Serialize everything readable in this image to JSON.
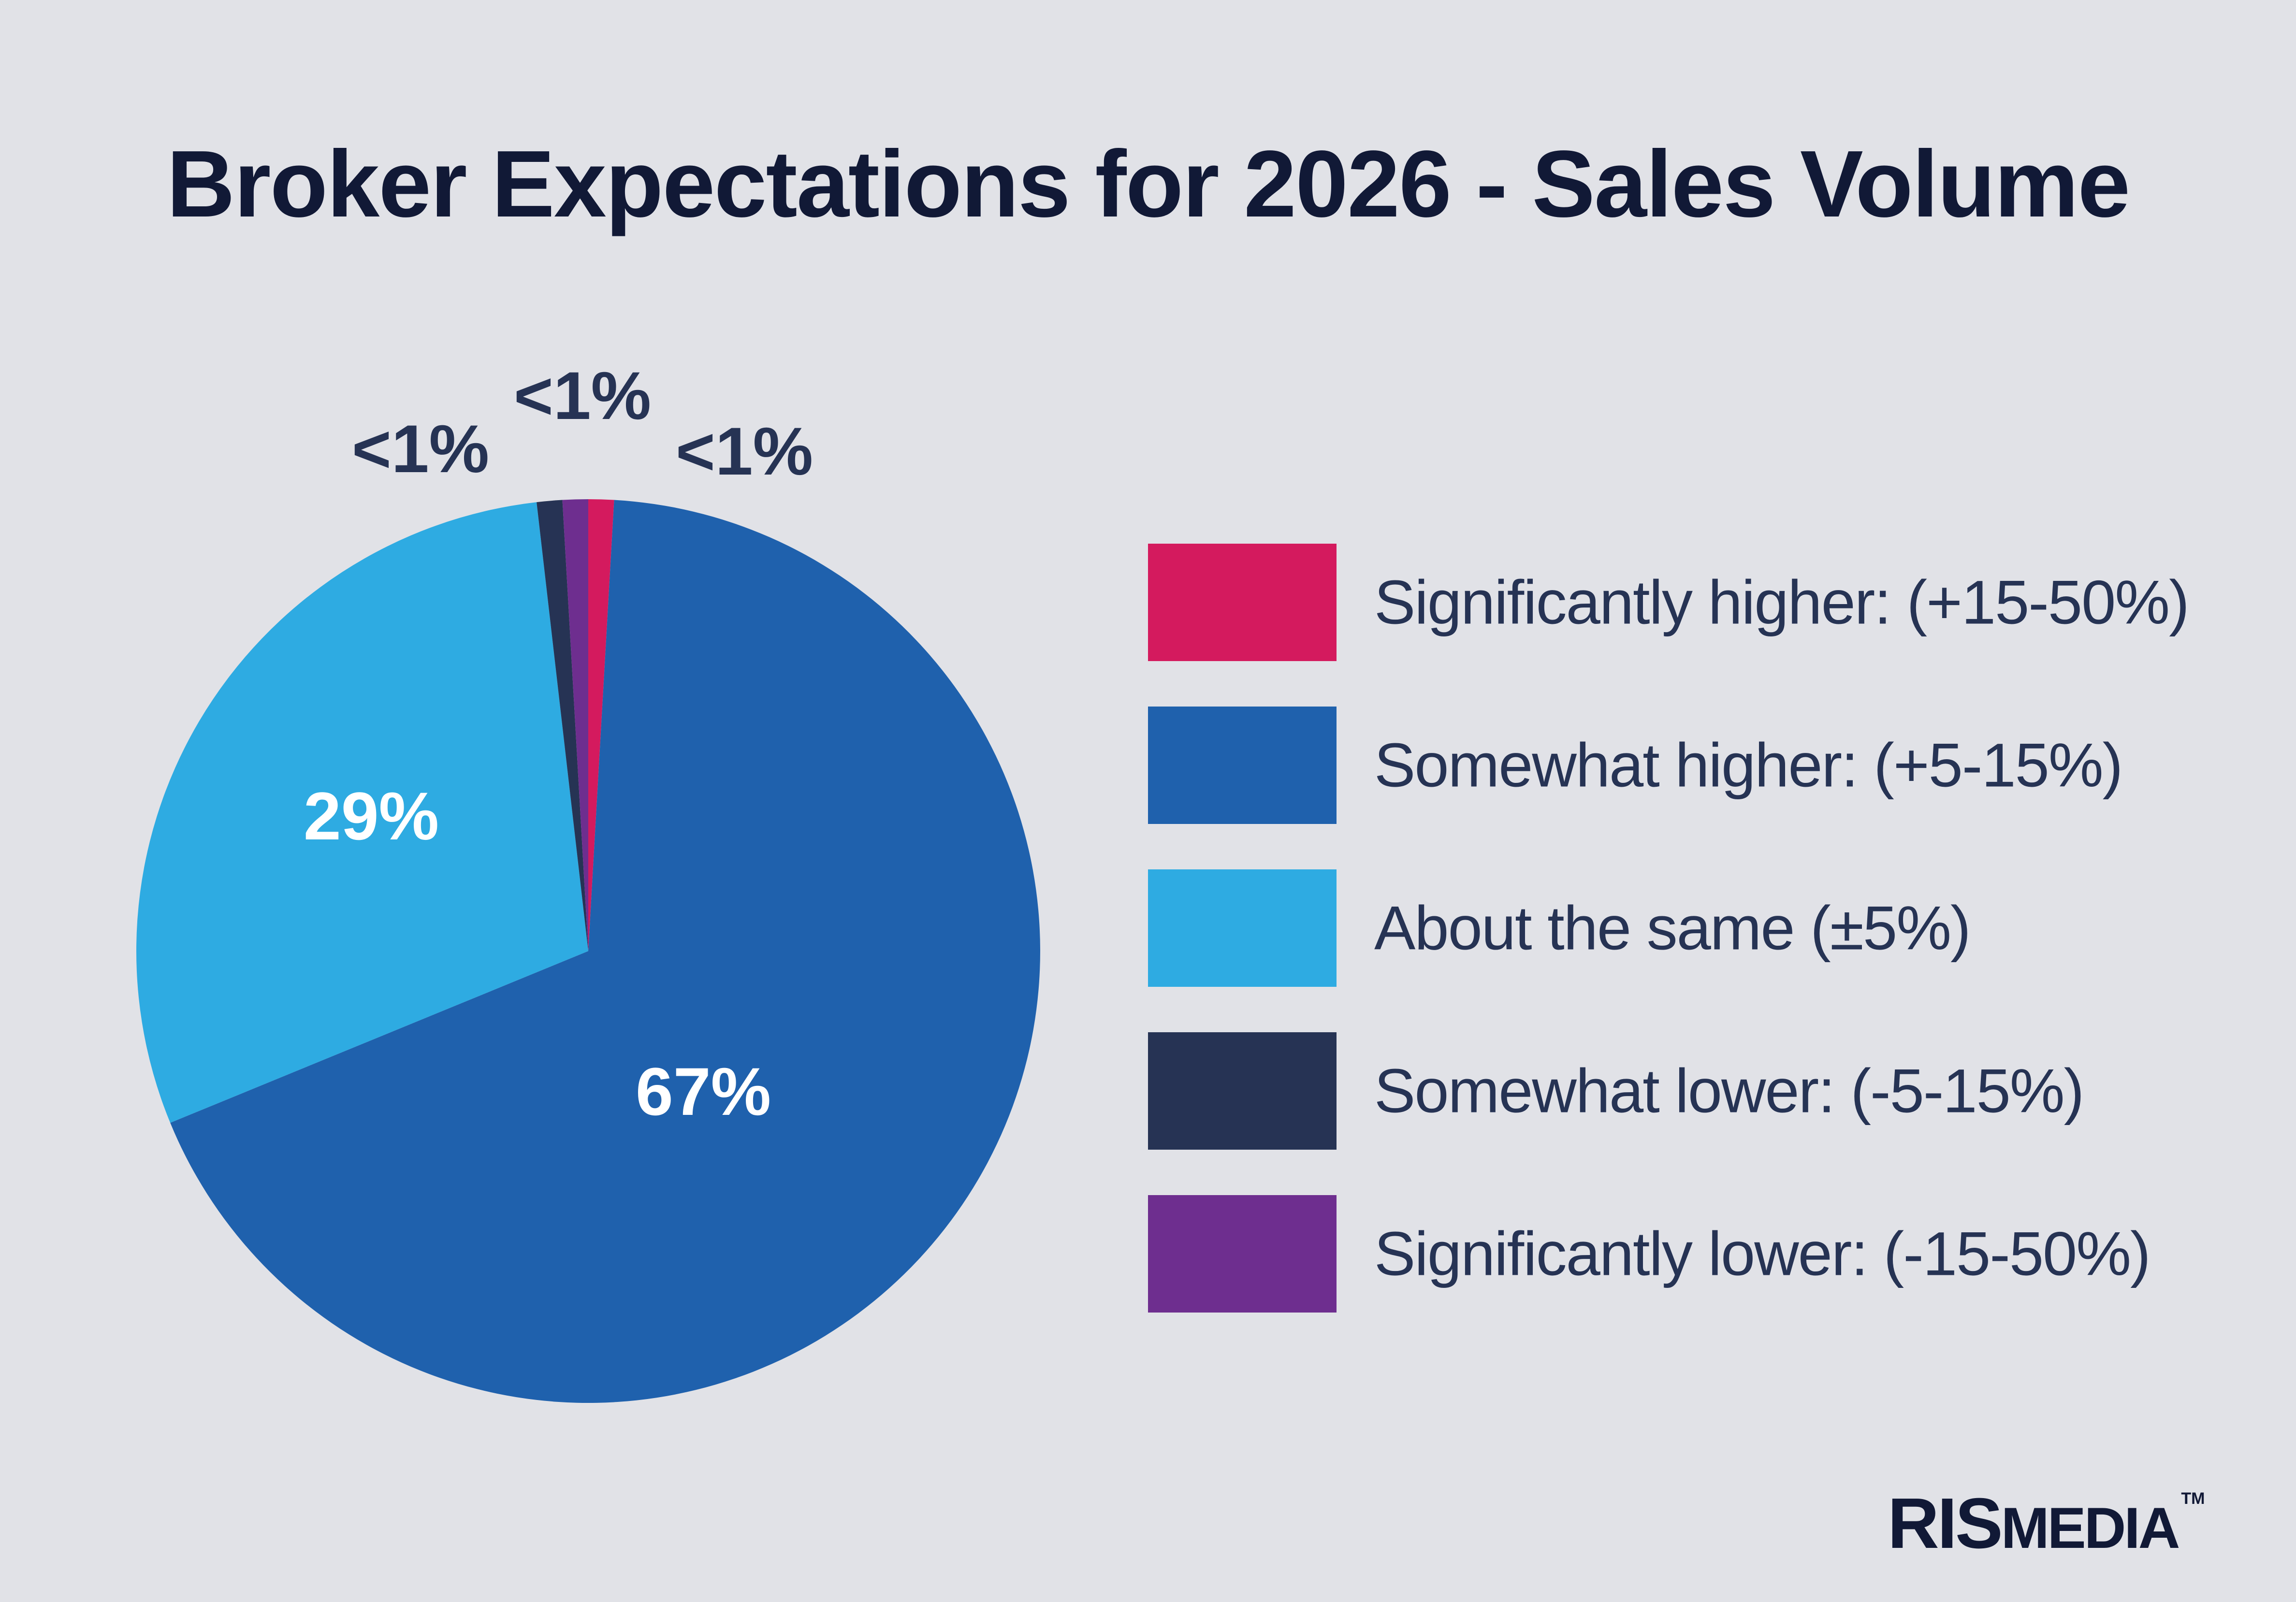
{
  "header": {
    "title": "Broker Expectations for 2026 - Sales Volume"
  },
  "chart_data": {
    "type": "pie",
    "title": "Broker Expectations for 2026 - Sales Volume",
    "start_angle": "12 o'clock",
    "direction": "clockwise",
    "legend_position": "right",
    "slices": [
      {
        "label": "Significantly higher: (+15-50%)",
        "value": 0.9,
        "display": "<1%",
        "color": "#D41A5E",
        "label_placement": "outside"
      },
      {
        "label": "Somewhat higher: (+5-15%)",
        "value": 67,
        "display": "67%",
        "color": "#1F61AD",
        "label_placement": "inside"
      },
      {
        "label": "About the same (±5%)",
        "value": 29,
        "display": "29%",
        "color": "#2EABE2",
        "label_placement": "inside"
      },
      {
        "label": "Somewhat lower: (-5-15%)",
        "value": 0.9,
        "display": "<1%",
        "color": "#263354",
        "label_placement": "outside"
      },
      {
        "label": "Significantly lower: (-15-50%)",
        "value": 0.9,
        "display": "<1%",
        "color": "#6E2E8F",
        "label_placement": "outside"
      }
    ]
  },
  "legend": {
    "items": [
      {
        "label": "Significantly higher: (+15-50%)",
        "color": "#D41A5E"
      },
      {
        "label": "Somewhat higher: (+5-15%)",
        "color": "#1F61AD"
      },
      {
        "label": "About the same (±5%)",
        "color": "#2EABE2"
      },
      {
        "label": "Somewhat lower: (-5-15%)",
        "color": "#263354"
      },
      {
        "label": "Significantly lower: (-15-50%)",
        "color": "#6E2E8F"
      }
    ]
  },
  "brand": {
    "logo_text_1": "RIS",
    "logo_text_2": "MEDIA",
    "trademark": "TM"
  }
}
